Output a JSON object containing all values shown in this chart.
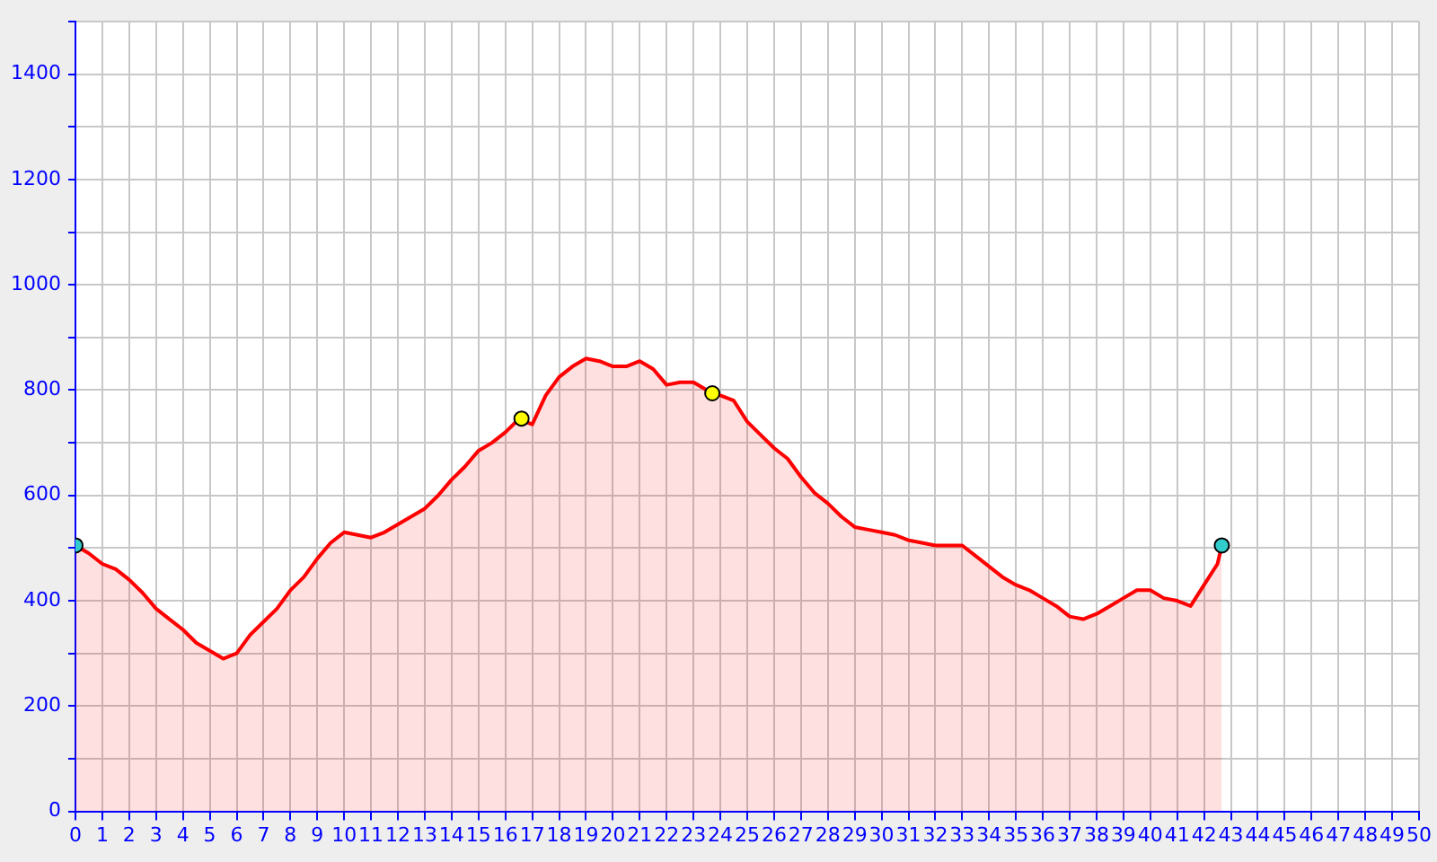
{
  "chart_data": {
    "type": "area",
    "x": [
      0,
      0.5,
      1,
      1.5,
      2,
      2.5,
      3,
      3.5,
      4,
      4.5,
      5,
      5.5,
      6,
      6.5,
      7,
      7.5,
      8,
      8.5,
      9,
      9.5,
      10,
      10.5,
      11,
      11.5,
      12,
      12.5,
      13,
      13.5,
      14,
      14.5,
      15,
      15.5,
      16,
      16.5,
      17,
      17.5,
      18,
      18.5,
      19,
      19.5,
      20,
      20.5,
      21,
      21.5,
      22,
      22.5,
      23,
      23.5,
      24,
      24.5,
      25,
      25.5,
      26,
      26.5,
      27,
      27.5,
      28,
      28.5,
      29,
      29.5,
      30,
      30.5,
      31,
      31.5,
      32,
      32.5,
      33,
      33.5,
      34,
      34.5,
      35,
      35.5,
      36,
      36.5,
      37,
      37.5,
      38,
      38.5,
      39,
      39.5,
      40,
      40.5,
      41,
      41.5,
      42,
      42.5,
      42.66
    ],
    "series": [
      {
        "color": "#ff0000",
        "values": [
          505,
          490,
          470,
          460,
          440,
          415,
          385,
          365,
          345,
          320,
          305,
          290,
          300,
          335,
          360,
          385,
          420,
          445,
          480,
          510,
          530,
          525,
          520,
          530,
          545,
          560,
          575,
          600,
          630,
          655,
          685,
          700,
          720,
          745,
          735,
          790,
          825,
          845,
          860,
          855,
          845,
          845,
          855,
          840,
          810,
          815,
          815,
          800,
          790,
          780,
          740,
          715,
          690,
          670,
          635,
          605,
          585,
          560,
          540,
          535,
          530,
          525,
          515,
          510,
          505,
          505,
          505,
          485,
          465,
          445,
          430,
          420,
          405,
          390,
          370,
          365,
          375,
          390,
          405,
          420,
          420,
          405,
          400,
          390,
          430,
          470,
          505
        ]
      },
      {
        "type": "scatter",
        "marker": "circle",
        "x": [
          0,
          16.6,
          23.7,
          42.66
        ],
        "values": [
          505,
          746,
          794,
          505
        ],
        "colors": [
          "#33cccc",
          "#ffff00",
          "#ffff00",
          "#33cccc"
        ]
      }
    ],
    "xlim": [
      0,
      50
    ],
    "xticks": [
      0,
      1,
      2,
      3,
      4,
      5,
      6,
      7,
      8,
      9,
      10,
      11,
      12,
      13,
      14,
      15,
      16,
      17,
      18,
      19,
      20,
      21,
      22,
      23,
      24,
      25,
      26,
      27,
      28,
      29,
      30,
      31,
      32,
      33,
      34,
      35,
      36,
      37,
      38,
      39,
      40,
      41,
      42,
      43,
      44,
      45,
      46,
      47,
      48,
      49,
      50
    ],
    "ylim": [
      0,
      1500
    ],
    "yticks": [
      0,
      {
        "value": 100,
        "label": null
      },
      200,
      {
        "value": 300,
        "label": null
      },
      400,
      {
        "value": 500,
        "label": null
      },
      600,
      {
        "value": 700,
        "label": null
      },
      800,
      {
        "value": 900,
        "label": null
      },
      1000,
      {
        "value": 1100,
        "label": null
      },
      1200,
      {
        "value": 1300,
        "label": null
      },
      1400,
      {
        "value": 1500,
        "label": null
      }
    ],
    "grid": true,
    "legend": false
  }
}
